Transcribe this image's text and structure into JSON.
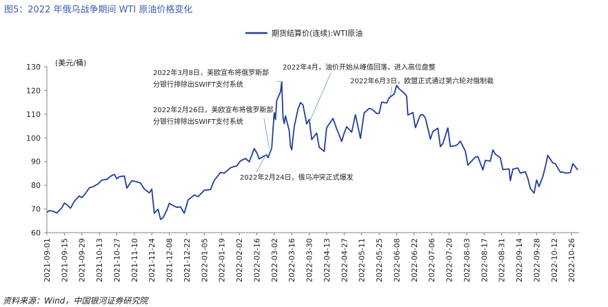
{
  "figure": {
    "title": "图5：2022 年俄乌战争期间 WTI 原油价格变化",
    "source": "资料来源：Wind，中国银河证券研究院"
  },
  "chart_data": {
    "type": "line",
    "title": "",
    "ylabel": "(美元/桶)",
    "xlabel": "",
    "ylim": [
      60,
      130
    ],
    "yticks": [
      60,
      70,
      80,
      90,
      100,
      110,
      120,
      130
    ],
    "grid": false,
    "legend_position": "top-center",
    "x_tick_labels": [
      "2021-09-01",
      "2021-09-15",
      "2021-09-29",
      "2021-10-13",
      "2021-10-27",
      "2021-11-10",
      "2021-11-24",
      "2021-12-08",
      "2021-12-22",
      "2022-01-05",
      "2022-01-19",
      "2022-02-02",
      "2022-02-16",
      "2022-03-02",
      "2022-03-16",
      "2022-03-30",
      "2022-04-13",
      "2022-04-27",
      "2022-05-11",
      "2022-05-25",
      "2022-06-08",
      "2022-06-22",
      "2022-07-06",
      "2022-07-20",
      "2022-08-03",
      "2022-08-17",
      "2022-08-31",
      "2022-09-14",
      "2022-09-28",
      "2022-10-12",
      "2022-10-26"
    ],
    "series": [
      {
        "name": "期货结算价(连续):WTI原油",
        "color": "#1f3c99",
        "points": [
          [
            "2021-09-01",
            68.6
          ],
          [
            "2021-09-03",
            69.3
          ],
          [
            "2021-09-06",
            69.0
          ],
          [
            "2021-09-09",
            68.3
          ],
          [
            "2021-09-13",
            70.5
          ],
          [
            "2021-09-15",
            72.5
          ],
          [
            "2021-09-17",
            71.8
          ],
          [
            "2021-09-20",
            70.3
          ],
          [
            "2021-09-23",
            73.3
          ],
          [
            "2021-09-27",
            75.5
          ],
          [
            "2021-09-29",
            74.8
          ],
          [
            "2021-10-01",
            75.9
          ],
          [
            "2021-10-05",
            78.9
          ],
          [
            "2021-10-08",
            79.4
          ],
          [
            "2021-10-12",
            80.6
          ],
          [
            "2021-10-15",
            82.2
          ],
          [
            "2021-10-19",
            82.5
          ],
          [
            "2021-10-22",
            83.8
          ],
          [
            "2021-10-25",
            84.6
          ],
          [
            "2021-10-27",
            82.7
          ],
          [
            "2021-10-29",
            83.6
          ],
          [
            "2021-11-02",
            83.9
          ],
          [
            "2021-11-04",
            78.8
          ],
          [
            "2021-11-08",
            81.9
          ],
          [
            "2021-11-11",
            81.6
          ],
          [
            "2021-11-15",
            80.9
          ],
          [
            "2021-11-18",
            78.4
          ],
          [
            "2021-11-22",
            76.8
          ],
          [
            "2021-11-24",
            78.4
          ],
          [
            "2021-11-26",
            68.2
          ],
          [
            "2021-11-29",
            69.9
          ],
          [
            "2021-12-01",
            65.6
          ],
          [
            "2021-12-03",
            66.3
          ],
          [
            "2021-12-06",
            69.5
          ],
          [
            "2021-12-08",
            72.4
          ],
          [
            "2021-12-10",
            71.7
          ],
          [
            "2021-12-14",
            70.7
          ],
          [
            "2021-12-17",
            70.9
          ],
          [
            "2021-12-20",
            68.2
          ],
          [
            "2021-12-23",
            73.8
          ],
          [
            "2021-12-28",
            75.9
          ],
          [
            "2021-12-31",
            75.2
          ],
          [
            "2022-01-05",
            77.9
          ],
          [
            "2022-01-10",
            78.2
          ],
          [
            "2022-01-13",
            82.1
          ],
          [
            "2022-01-18",
            85.4
          ],
          [
            "2022-01-21",
            85.1
          ],
          [
            "2022-01-26",
            87.4
          ],
          [
            "2022-01-31",
            88.2
          ],
          [
            "2022-02-03",
            90.3
          ],
          [
            "2022-02-07",
            91.3
          ],
          [
            "2022-02-10",
            89.9
          ],
          [
            "2022-02-14",
            95.5
          ],
          [
            "2022-02-16",
            93.7
          ],
          [
            "2022-02-18",
            91.1
          ],
          [
            "2022-02-22",
            92.4
          ],
          [
            "2022-02-24",
            92.8
          ],
          [
            "2022-02-25",
            91.6
          ],
          [
            "2022-02-28",
            95.7
          ],
          [
            "2022-03-01",
            103.4
          ],
          [
            "2022-03-02",
            110.6
          ],
          [
            "2022-03-03",
            107.7
          ],
          [
            "2022-03-04",
            115.7
          ],
          [
            "2022-03-07",
            119.4
          ],
          [
            "2022-03-08",
            123.7
          ],
          [
            "2022-03-09",
            108.7
          ],
          [
            "2022-03-10",
            106.0
          ],
          [
            "2022-03-11",
            109.3
          ],
          [
            "2022-03-14",
            103.0
          ],
          [
            "2022-03-15",
            96.4
          ],
          [
            "2022-03-16",
            95.0
          ],
          [
            "2022-03-18",
            104.7
          ],
          [
            "2022-03-21",
            112.1
          ],
          [
            "2022-03-23",
            114.9
          ],
          [
            "2022-03-25",
            113.9
          ],
          [
            "2022-03-28",
            105.9
          ],
          [
            "2022-03-30",
            107.8
          ],
          [
            "2022-04-01",
            99.3
          ],
          [
            "2022-04-05",
            102.0
          ],
          [
            "2022-04-07",
            96.0
          ],
          [
            "2022-04-11",
            94.3
          ],
          [
            "2022-04-13",
            104.3
          ],
          [
            "2022-04-18",
            108.2
          ],
          [
            "2022-04-21",
            103.8
          ],
          [
            "2022-04-25",
            98.5
          ],
          [
            "2022-04-27",
            102.0
          ],
          [
            "2022-04-29",
            104.7
          ],
          [
            "2022-05-03",
            102.4
          ],
          [
            "2022-05-06",
            109.8
          ],
          [
            "2022-05-10",
            99.8
          ],
          [
            "2022-05-13",
            110.5
          ],
          [
            "2022-05-17",
            112.4
          ],
          [
            "2022-05-19",
            112.2
          ],
          [
            "2022-05-23",
            110.3
          ],
          [
            "2022-05-25",
            110.3
          ],
          [
            "2022-05-27",
            115.1
          ],
          [
            "2022-05-31",
            114.7
          ],
          [
            "2022-06-02",
            116.9
          ],
          [
            "2022-06-06",
            118.5
          ],
          [
            "2022-06-08",
            122.1
          ],
          [
            "2022-06-10",
            120.7
          ],
          [
            "2022-06-14",
            118.9
          ],
          [
            "2022-06-16",
            117.6
          ],
          [
            "2022-06-17",
            109.6
          ],
          [
            "2022-06-21",
            110.7
          ],
          [
            "2022-06-23",
            104.3
          ],
          [
            "2022-06-27",
            109.6
          ],
          [
            "2022-06-29",
            109.8
          ],
          [
            "2022-07-01",
            108.4
          ],
          [
            "2022-07-05",
            99.5
          ],
          [
            "2022-07-07",
            102.7
          ],
          [
            "2022-07-11",
            104.1
          ],
          [
            "2022-07-13",
            96.3
          ],
          [
            "2022-07-15",
            97.6
          ],
          [
            "2022-07-19",
            104.2
          ],
          [
            "2022-07-21",
            96.4
          ],
          [
            "2022-07-25",
            96.7
          ],
          [
            "2022-07-27",
            97.3
          ],
          [
            "2022-07-29",
            98.6
          ],
          [
            "2022-08-02",
            94.4
          ],
          [
            "2022-08-04",
            88.5
          ],
          [
            "2022-08-08",
            90.8
          ],
          [
            "2022-08-10",
            91.9
          ],
          [
            "2022-08-12",
            92.1
          ],
          [
            "2022-08-16",
            86.5
          ],
          [
            "2022-08-18",
            90.5
          ],
          [
            "2022-08-22",
            90.2
          ],
          [
            "2022-08-24",
            94.9
          ],
          [
            "2022-08-26",
            93.1
          ],
          [
            "2022-08-30",
            91.6
          ],
          [
            "2022-09-01",
            86.6
          ],
          [
            "2022-09-06",
            86.9
          ],
          [
            "2022-09-07",
            81.9
          ],
          [
            "2022-09-09",
            86.8
          ],
          [
            "2022-09-13",
            87.3
          ],
          [
            "2022-09-15",
            85.1
          ],
          [
            "2022-09-19",
            85.7
          ],
          [
            "2022-09-21",
            82.9
          ],
          [
            "2022-09-23",
            78.7
          ],
          [
            "2022-09-26",
            76.7
          ],
          [
            "2022-09-28",
            82.2
          ],
          [
            "2022-09-30",
            79.5
          ],
          [
            "2022-10-03",
            83.6
          ],
          [
            "2022-10-05",
            87.8
          ],
          [
            "2022-10-07",
            92.6
          ],
          [
            "2022-10-11",
            89.4
          ],
          [
            "2022-10-13",
            89.1
          ],
          [
            "2022-10-17",
            85.5
          ],
          [
            "2022-10-19",
            85.6
          ],
          [
            "2022-10-21",
            85.1
          ],
          [
            "2022-10-25",
            85.3
          ],
          [
            "2022-10-27",
            89.1
          ],
          [
            "2022-10-31",
            86.5
          ]
        ]
      }
    ],
    "annotations": [
      {
        "lines": [
          "2022年3月8日，美欧宣布将俄罗斯部",
          "分银行排除出SWIFT支付系统"
        ],
        "target": [
          "2022-03-08",
          123.5
        ]
      },
      {
        "lines": [
          "2022年4月，油价开始从峰值回落，进入高位盘整"
        ],
        "target": [
          "2022-03-30",
          106.5
        ]
      },
      {
        "lines": [
          "2022年6月3日，欧盟正式通过第六轮对俄制裁"
        ],
        "target": [
          "2022-06-03",
          117.5
        ]
      },
      {
        "lines": [
          "2022年2月26日，美欧宣布将俄罗斯部",
          "分银行排除出SWIFT支付系统"
        ],
        "target": [
          "2022-02-26",
          95.5
        ]
      },
      {
        "lines": [
          "2022年2月24日，俄乌冲突正式爆发"
        ],
        "target": [
          "2022-02-24",
          93.5
        ]
      }
    ]
  }
}
